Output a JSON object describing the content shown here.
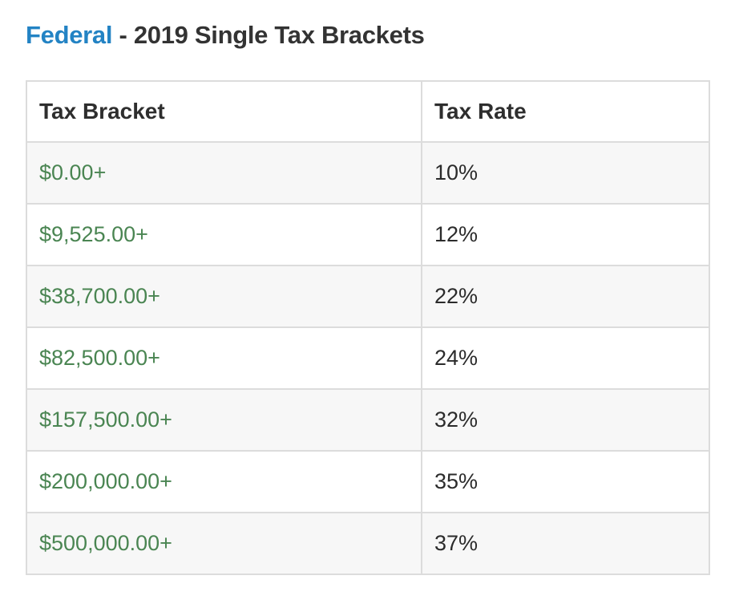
{
  "title": {
    "jurisdiction": "Federal",
    "rest": " - 2019 Single Tax Brackets"
  },
  "table": {
    "headers": [
      "Tax Bracket",
      "Tax Rate"
    ],
    "rows": [
      {
        "bracket": "$0.00+",
        "rate": "10%"
      },
      {
        "bracket": "$9,525.00+",
        "rate": "12%"
      },
      {
        "bracket": "$38,700.00+",
        "rate": "22%"
      },
      {
        "bracket": "$82,500.00+",
        "rate": "24%"
      },
      {
        "bracket": "$157,500.00+",
        "rate": "32%"
      },
      {
        "bracket": "$200,000.00+",
        "rate": "35%"
      },
      {
        "bracket": "$500,000.00+",
        "rate": "37%"
      }
    ]
  },
  "colors": {
    "link_blue": "#2383c4",
    "bracket_green": "#4a8552",
    "heading_dark": "#333333",
    "rate_dark": "#2b2b2b",
    "row_alt_bg": "#f7f7f7",
    "border": "#dcdcdc"
  }
}
